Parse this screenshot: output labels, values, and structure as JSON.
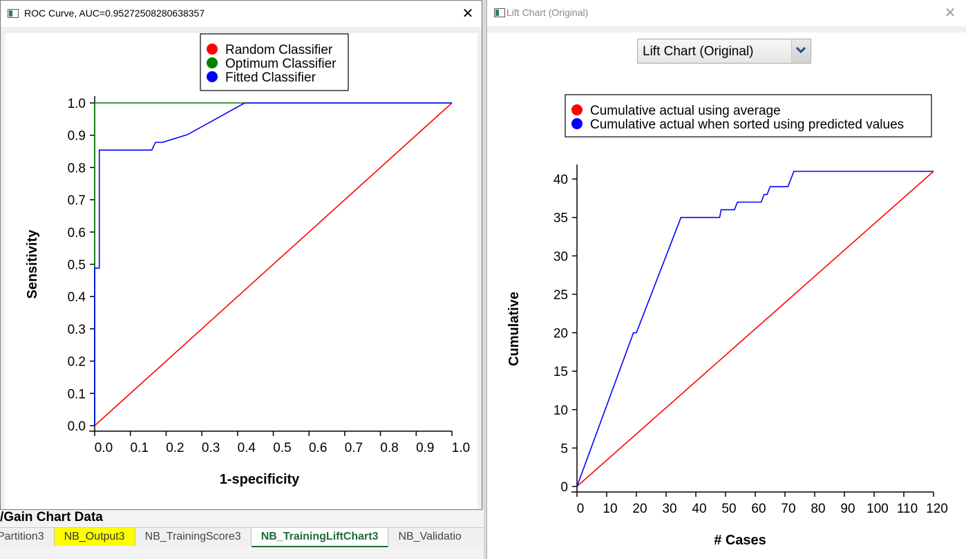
{
  "background": {
    "heading": "/Gain Chart Data",
    "tabs": [
      {
        "label": "Partition3",
        "style": "first"
      },
      {
        "label": "NB_Output3",
        "style": "highlight"
      },
      {
        "label": "NB_TrainingScore3",
        "style": ""
      },
      {
        "label": "NB_TrainingLiftChart3",
        "style": "active"
      },
      {
        "label": "NB_Validatio",
        "style": "cut"
      }
    ]
  },
  "roc_window": {
    "title": "ROC Curve, AUC=0.95272508280638357",
    "close_label": "✕",
    "legend": [
      {
        "label": "Random Classifier",
        "color": "#ff0000"
      },
      {
        "label": "Optimum Classifier",
        "color": "#008000"
      },
      {
        "label": "Fitted Classifier",
        "color": "#0000ff"
      }
    ]
  },
  "lift_window": {
    "title": "Lift Chart (Original)",
    "close_label": "✕",
    "dropdown_value": "Lift Chart (Original)",
    "legend": [
      {
        "label": "Cumulative actual using average",
        "color": "#ff0000"
      },
      {
        "label": "Cumulative actual when sorted using predicted values",
        "color": "#0000ff"
      }
    ]
  },
  "chart_data": [
    {
      "type": "line",
      "title": "",
      "xlabel": "1-specificity",
      "ylabel": "Sensitivity",
      "xlim": [
        0,
        1
      ],
      "ylim": [
        0,
        1
      ],
      "x_ticks": [
        "0.0",
        "0.1",
        "0.2",
        "0.3",
        "0.4",
        "0.5",
        "0.6",
        "0.7",
        "0.8",
        "0.9",
        "1.0"
      ],
      "y_ticks": [
        "0.0",
        "0.1",
        "0.2",
        "0.3",
        "0.4",
        "0.5",
        "0.6",
        "0.7",
        "0.8",
        "0.9",
        "1.0"
      ],
      "legend_position": "top-center",
      "series": [
        {
          "name": "Random Classifier",
          "color": "#ff0000",
          "x": [
            0,
            1
          ],
          "y": [
            0,
            1
          ]
        },
        {
          "name": "Optimum Classifier",
          "color": "#008000",
          "x": [
            0,
            0,
            1
          ],
          "y": [
            0,
            1,
            1
          ]
        },
        {
          "name": "Fitted Classifier",
          "color": "#0000ff",
          "x": [
            0,
            0,
            0.013,
            0.013,
            0.16,
            0.17,
            0.19,
            0.26,
            0.42,
            1.0
          ],
          "y": [
            0,
            0.488,
            0.488,
            0.854,
            0.854,
            0.878,
            0.878,
            0.902,
            1.0,
            1.0
          ]
        }
      ]
    },
    {
      "type": "line",
      "title": "",
      "xlabel": "# Cases",
      "ylabel": "Cumulative",
      "xlim": [
        0,
        120
      ],
      "ylim": [
        0,
        41
      ],
      "x_ticks": [
        "0",
        "10",
        "20",
        "30",
        "40",
        "50",
        "60",
        "70",
        "80",
        "90",
        "100",
        "110",
        "120"
      ],
      "y_ticks": [
        "0",
        "5",
        "10",
        "15",
        "20",
        "25",
        "30",
        "35",
        "40"
      ],
      "legend_position": "top-right",
      "series": [
        {
          "name": "Cumulative actual using average",
          "color": "#ff0000",
          "x": [
            0,
            120
          ],
          "y": [
            0,
            41
          ]
        },
        {
          "name": "Cumulative actual when sorted using predicted values",
          "color": "#0000ff",
          "x": [
            0,
            19,
            20,
            35,
            48,
            48.5,
            53,
            54,
            62,
            63,
            64,
            65,
            71,
            73,
            120
          ],
          "y": [
            0,
            20,
            20,
            35,
            35,
            36,
            36,
            37,
            37,
            38,
            38,
            39,
            39,
            41,
            41
          ]
        }
      ]
    }
  ]
}
